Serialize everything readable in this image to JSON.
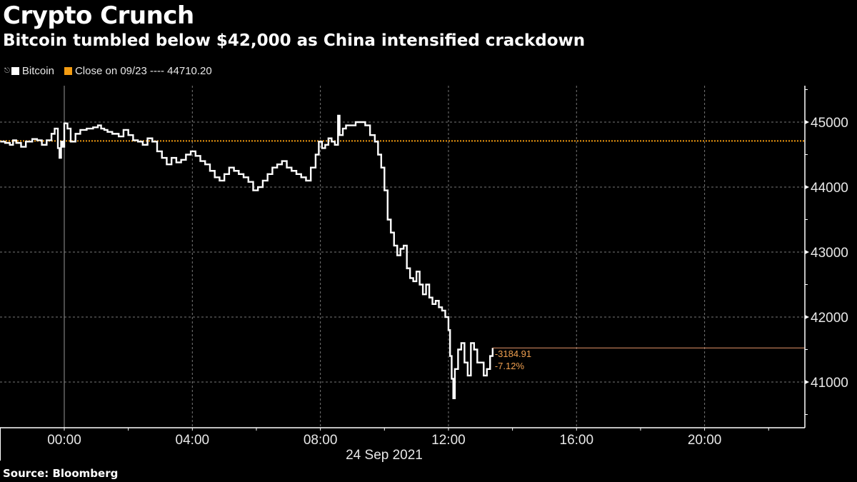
{
  "header": {
    "title": "Crypto Crunch",
    "subtitle": "Bitcoin tumbled below $42,000 as China intensified crackdown"
  },
  "legend": {
    "series_label": "Bitcoin",
    "series_color": "#ffffff",
    "reference_label": "Close on 09/23 ---- 44710.20",
    "reference_color": "#f39c12"
  },
  "annotation": {
    "change_abs": "-3184.91",
    "change_pct": "-7.12%",
    "color": "#f0a050"
  },
  "xaxis": {
    "date_label": "24 Sep 2021",
    "ticks": [
      "00:00",
      "04:00",
      "08:00",
      "12:00",
      "16:00",
      "20:00"
    ]
  },
  "yaxis": {
    "ticks": [
      "45000",
      "44000",
      "43000",
      "42000",
      "41000"
    ]
  },
  "footer": {
    "source": "Source: Bloomberg"
  },
  "chart_data": {
    "type": "line",
    "title": "Crypto Crunch",
    "subtitle": "Bitcoin tumbled below $42,000 as China intensified crackdown",
    "xlabel": "24 Sep 2021",
    "ylabel": "",
    "x_ticks": [
      "00:00",
      "04:00",
      "08:00",
      "12:00",
      "16:00",
      "20:00"
    ],
    "y_ticks": [
      41000,
      42000,
      43000,
      44000,
      45000
    ],
    "ylim": [
      40350,
      45550
    ],
    "xlim_hours": [
      -2.0,
      23.1
    ],
    "grid": true,
    "legend_position": "top-left",
    "reference_line": {
      "label": "Close on 09/23",
      "value": 44710.2,
      "style": "dotted",
      "color": "#f39c12"
    },
    "last_value_line": {
      "value": 41525.29,
      "change": -3184.91,
      "change_pct": -7.12
    },
    "series": [
      {
        "name": "Bitcoin",
        "x_hours": [
          -2.0,
          -1.85,
          -1.7,
          -1.6,
          -1.5,
          -1.35,
          -1.2,
          -1.0,
          -0.85,
          -0.7,
          -0.55,
          -0.4,
          -0.3,
          -0.2,
          -0.15,
          -0.1,
          -0.05,
          0.0,
          0.1,
          0.2,
          0.35,
          0.5,
          0.7,
          0.9,
          1.05,
          1.15,
          1.25,
          1.35,
          1.5,
          1.7,
          1.85,
          2.0,
          2.15,
          2.3,
          2.45,
          2.6,
          2.75,
          2.9,
          3.05,
          3.2,
          3.35,
          3.5,
          3.65,
          3.8,
          3.95,
          4.1,
          4.25,
          4.4,
          4.55,
          4.7,
          4.85,
          5.0,
          5.15,
          5.3,
          5.45,
          5.6,
          5.75,
          5.9,
          6.05,
          6.2,
          6.35,
          6.5,
          6.65,
          6.8,
          6.95,
          7.1,
          7.25,
          7.4,
          7.55,
          7.7,
          7.85,
          7.95,
          8.05,
          8.15,
          8.25,
          8.35,
          8.45,
          8.55,
          8.6,
          8.7,
          8.8,
          8.95,
          9.1,
          9.25,
          9.4,
          9.55,
          9.7,
          9.8,
          9.9,
          10.0,
          10.1,
          10.2,
          10.3,
          10.4,
          10.5,
          10.6,
          10.7,
          10.8,
          10.9,
          11.0,
          11.1,
          11.2,
          11.3,
          11.4,
          11.5,
          11.6,
          11.7,
          11.8,
          11.9,
          12.0,
          12.05,
          12.1,
          12.15,
          12.2,
          12.3,
          12.4,
          12.5,
          12.6,
          12.7,
          12.8,
          12.9,
          13.0,
          13.1,
          13.2,
          13.3,
          13.38
        ],
        "values": [
          44700,
          44680,
          44650,
          44720,
          44680,
          44620,
          44700,
          44740,
          44720,
          44650,
          44720,
          44820,
          44900,
          44600,
          44450,
          44700,
          44620,
          44980,
          44900,
          44700,
          44820,
          44880,
          44900,
          44920,
          44950,
          44900,
          44880,
          44850,
          44820,
          44780,
          44880,
          44800,
          44720,
          44700,
          44650,
          44750,
          44700,
          44550,
          44450,
          44350,
          44450,
          44380,
          44420,
          44500,
          44550,
          44480,
          44400,
          44350,
          44250,
          44150,
          44100,
          44200,
          44300,
          44250,
          44200,
          44150,
          44080,
          43950,
          44000,
          44100,
          44200,
          44300,
          44350,
          44400,
          44300,
          44250,
          44200,
          44150,
          44100,
          44300,
          44500,
          44700,
          44600,
          44650,
          44750,
          44700,
          44650,
          45100,
          44800,
          44900,
          44950,
          44950,
          45000,
          45000,
          44950,
          44800,
          44700,
          44500,
          44300,
          43950,
          43500,
          43300,
          43100,
          42950,
          43050,
          43100,
          42750,
          42600,
          42550,
          42700,
          42500,
          42350,
          42500,
          42300,
          42200,
          42250,
          42150,
          42100,
          42000,
          41800,
          41400,
          41050,
          40750,
          41200,
          41500,
          41600,
          41300,
          41100,
          41600,
          41500,
          41300,
          41300,
          41100,
          41200,
          41400,
          41525
        ]
      }
    ]
  }
}
